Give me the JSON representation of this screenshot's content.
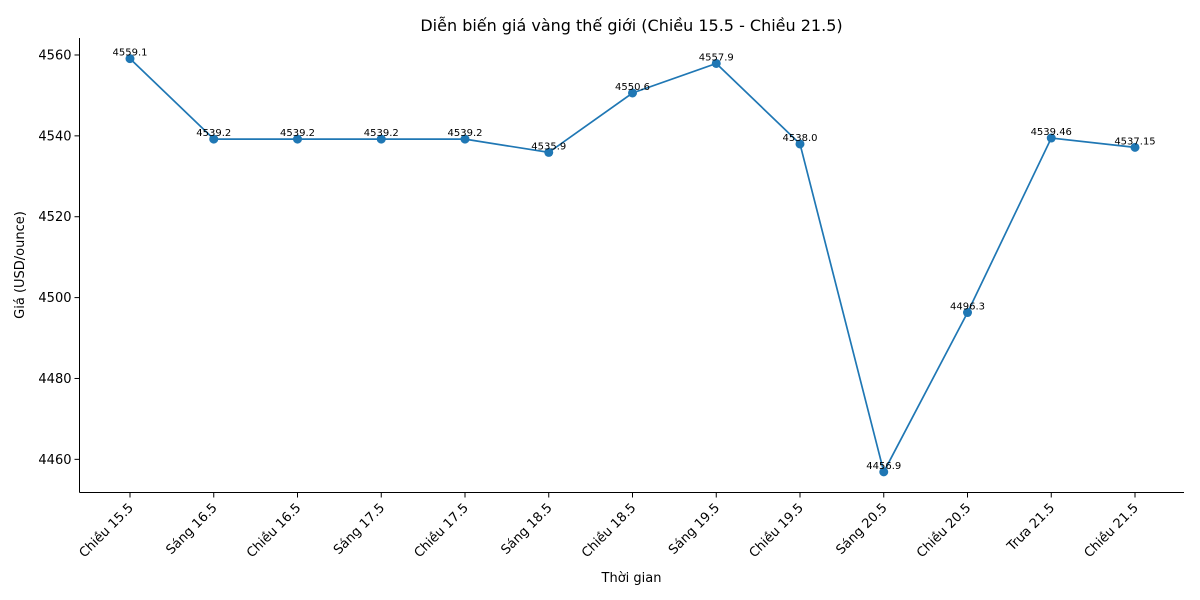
{
  "chart_data": {
    "type": "line",
    "title": "Diễn biến giá vàng thế giới (Chiều 15.5 - Chiều 21.5)",
    "xlabel": "Thời gian",
    "ylabel": "Giá (USD/ounce)",
    "categories": [
      "Chiều 15.5",
      "Sáng 16.5",
      "Chiều 16.5",
      "Sáng 17.5",
      "Chiều 17.5",
      "Sáng 18.5",
      "Chiều 18.5",
      "Sáng 19.5",
      "Chiều 19.5",
      "Sáng 20.5",
      "Chiều 20.5",
      "Trưa 21.5",
      "Chiều 21.5"
    ],
    "series": [
      {
        "values": [
          4559.1,
          4539.2,
          4539.2,
          4539.2,
          4539.2,
          4535.9,
          4550.6,
          4557.9,
          4538.0,
          4456.9,
          4496.3,
          4539.46,
          4537.15
        ],
        "labels": [
          "4559.1",
          "4539.2",
          "4539.2",
          "4539.2",
          "4539.2",
          "4535.9",
          "4550.6",
          "4557.9",
          "4538.0",
          "4456.9",
          "4496.3",
          "4539.46",
          "4537.15"
        ]
      }
    ],
    "ylim": [
      4451.8,
      4564.2
    ],
    "yticks": [
      4460,
      4480,
      4500,
      4520,
      4540,
      4560
    ],
    "ytick_labels": [
      "4460",
      "4480",
      "4500",
      "4520",
      "4540",
      "4560"
    ],
    "grid": false,
    "color": "#1f77b4",
    "marker": "circle"
  }
}
